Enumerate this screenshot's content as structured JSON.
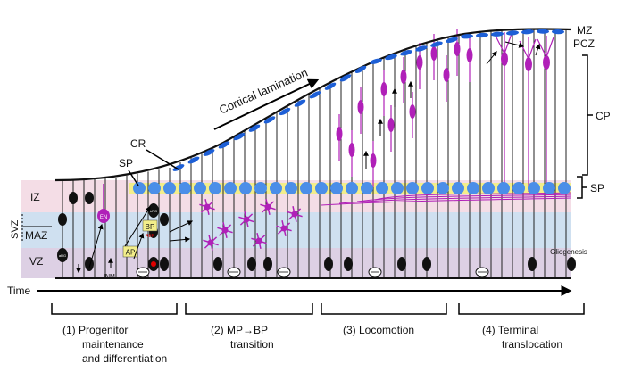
{
  "zones": {
    "mz": "MZ",
    "pcz": "PCZ",
    "cp": "CP",
    "sp_right": "SP",
    "iz": "IZ",
    "svz": "SVZ",
    "maz": "MAZ",
    "vz": "VZ"
  },
  "callouts": {
    "cr": "CR",
    "sp": "SP",
    "cortical_lamination": "Cortical lamination",
    "gliogenesis": "Gliogenesis",
    "inm": "INM"
  },
  "cells": {
    "en": "EN",
    "bp": "BP",
    "ap": "AP",
    "rep": "REP",
    "arg": "aRG",
    "brg": "bRG"
  },
  "time": {
    "label": "Time"
  },
  "stages": [
    {
      "line1": "(1) Progenitor",
      "line2": "maintenance",
      "line3": "and differentiation"
    },
    {
      "line1": "(2) MP→BP",
      "line2": "transition"
    },
    {
      "line1": "(3) Locomotion"
    },
    {
      "line1": "(4) Terminal",
      "line2": "translocation"
    }
  ],
  "colors": {
    "iz_band": "#f4dde6",
    "svz_band": "#cfe0f0",
    "vz_band": "#ddd0e4",
    "sp_band": "#f3ee8a",
    "cr_cell": "#1d5fd6",
    "sp_cell": "#4b8ee8",
    "neuron": "#b020b8",
    "progenitor": "#111111"
  }
}
